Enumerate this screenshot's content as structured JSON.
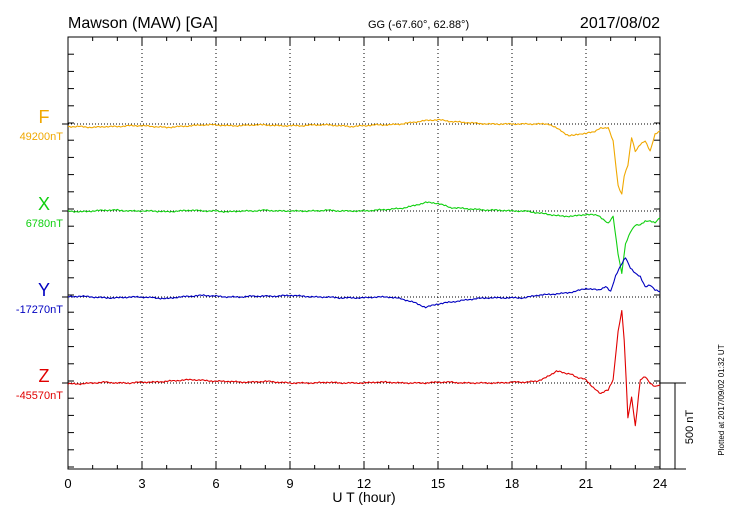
{
  "header": {
    "station": "Mawson (MAW)  [GA]",
    "coords": "GG (-67.60°,  62.88°)",
    "date": "2017/08/02"
  },
  "footer": {
    "plotted_note": "Plotted at 2017/09/02 01:32 UT"
  },
  "colors": {
    "F": "#f0a800",
    "X": "#10d010",
    "Y": "#0000c0",
    "Z": "#e00000",
    "frame": "#000000"
  },
  "chart_data": {
    "type": "line",
    "xlabel": "U T (hour)",
    "xlim": [
      0,
      24
    ],
    "xticks": [
      0,
      3,
      6,
      9,
      12,
      15,
      18,
      21,
      24
    ],
    "grid": "dotted vertical",
    "scale_bar": {
      "value": 500,
      "label": "500 nT"
    },
    "series": [
      {
        "name": "F",
        "baseline_label": "49200nT",
        "x": [
          0,
          0.5,
          1,
          1.5,
          2,
          2.5,
          3,
          3.5,
          4,
          4.5,
          5,
          5.5,
          6,
          6.5,
          7,
          7.5,
          8,
          8.5,
          9,
          9.5,
          10,
          10.5,
          11,
          11.5,
          12,
          12.5,
          13,
          13.5,
          14,
          14.5,
          15,
          15.5,
          16,
          16.5,
          17,
          17.5,
          18,
          18.5,
          19,
          19.5,
          20,
          20.3,
          20.6,
          21,
          21.3,
          21.6,
          21.9,
          22.1,
          22.3,
          22.45,
          22.55,
          22.7,
          22.85,
          23,
          23.2,
          23.4,
          23.6,
          23.8,
          24
        ],
        "values": [
          -15,
          -15,
          -20,
          -15,
          -15,
          -10,
          -10,
          -15,
          -20,
          -15,
          -10,
          -5,
          -5,
          -10,
          -10,
          -5,
          -5,
          -10,
          -10,
          -10,
          -5,
          -5,
          -10,
          -15,
          -10,
          -5,
          -5,
          0,
          10,
          20,
          25,
          15,
          10,
          5,
          0,
          0,
          0,
          0,
          0,
          0,
          -40,
          -70,
          -60,
          -55,
          -45,
          -25,
          -20,
          -100,
          -360,
          -410,
          -300,
          -240,
          -80,
          -160,
          -120,
          -100,
          -160,
          -60,
          -40
        ]
      },
      {
        "name": "X",
        "baseline_label": "6780nT",
        "x": [
          0,
          0.5,
          1,
          1.5,
          2,
          2.5,
          3,
          3.5,
          4,
          4.5,
          5,
          5.5,
          6,
          6.5,
          7,
          7.5,
          8,
          8.5,
          9,
          9.5,
          10,
          10.5,
          11,
          11.5,
          12,
          12.5,
          13,
          13.5,
          14,
          14.5,
          15,
          15.5,
          16,
          16.5,
          17,
          17.5,
          18,
          18.5,
          19,
          19.5,
          20,
          20.5,
          21,
          21.5,
          21.9,
          22.1,
          22.3,
          22.45,
          22.6,
          22.8,
          23,
          23.2,
          23.4,
          23.6,
          23.8,
          24
        ],
        "values": [
          0,
          -5,
          0,
          5,
          5,
          0,
          0,
          0,
          -5,
          0,
          5,
          0,
          0,
          -5,
          0,
          0,
          5,
          0,
          0,
          0,
          0,
          5,
          0,
          0,
          0,
          5,
          10,
          15,
          30,
          50,
          45,
          20,
          15,
          10,
          5,
          5,
          0,
          0,
          -10,
          -20,
          -30,
          -30,
          -20,
          -25,
          -70,
          -30,
          -250,
          -360,
          -190,
          -120,
          -80,
          -80,
          -60,
          -60,
          -70,
          -40
        ]
      },
      {
        "name": "Y",
        "baseline_label": "-17270nT",
        "x": [
          0,
          0.5,
          1,
          1.5,
          2,
          2.5,
          3,
          3.5,
          4,
          4.5,
          5,
          5.5,
          6,
          6.5,
          7,
          7.5,
          8,
          8.5,
          9,
          9.5,
          10,
          10.5,
          11,
          11.5,
          12,
          12.5,
          13,
          13.5,
          14,
          14.5,
          15,
          15.5,
          16,
          16.5,
          17,
          17.5,
          18,
          18.5,
          19,
          19.5,
          20,
          20.5,
          21,
          21.5,
          21.8,
          22,
          22.2,
          22.4,
          22.6,
          22.8,
          23,
          23.2,
          23.4,
          23.6,
          23.8,
          24
        ],
        "values": [
          0,
          5,
          0,
          -5,
          -5,
          0,
          0,
          -5,
          -10,
          0,
          5,
          10,
          5,
          0,
          0,
          5,
          5,
          5,
          10,
          5,
          0,
          0,
          -5,
          -5,
          -5,
          0,
          0,
          -10,
          -30,
          -60,
          -40,
          -30,
          -20,
          -10,
          -5,
          -5,
          -5,
          -5,
          10,
          15,
          20,
          30,
          50,
          40,
          60,
          30,
          120,
          180,
          230,
          170,
          140,
          120,
          60,
          70,
          40,
          30
        ]
      },
      {
        "name": "Z",
        "baseline_label": "-45570nT",
        "x": [
          0,
          0.5,
          1,
          1.5,
          2,
          2.5,
          3,
          3.5,
          4,
          4.5,
          5,
          5.5,
          6,
          6.5,
          7,
          7.5,
          8,
          8.5,
          9,
          9.5,
          10,
          10.5,
          11,
          11.5,
          12,
          12.5,
          13,
          13.5,
          14,
          14.5,
          15,
          15.5,
          16,
          16.5,
          17,
          17.5,
          18,
          18.5,
          19,
          19.5,
          19.8,
          20.1,
          20.4,
          20.7,
          21,
          21.3,
          21.6,
          21.9,
          22.1,
          22.3,
          22.45,
          22.55,
          22.7,
          22.85,
          23,
          23.2,
          23.4,
          23.6,
          23.8,
          24
        ],
        "values": [
          -5,
          -5,
          0,
          5,
          0,
          0,
          5,
          5,
          10,
          15,
          20,
          15,
          10,
          10,
          5,
          5,
          10,
          5,
          0,
          0,
          0,
          5,
          0,
          0,
          0,
          5,
          5,
          0,
          0,
          0,
          5,
          5,
          0,
          0,
          0,
          0,
          5,
          5,
          10,
          40,
          70,
          60,
          50,
          30,
          20,
          -30,
          -60,
          -40,
          20,
          300,
          420,
          250,
          -200,
          -80,
          -250,
          20,
          40,
          0,
          -20,
          -10
        ]
      }
    ]
  }
}
